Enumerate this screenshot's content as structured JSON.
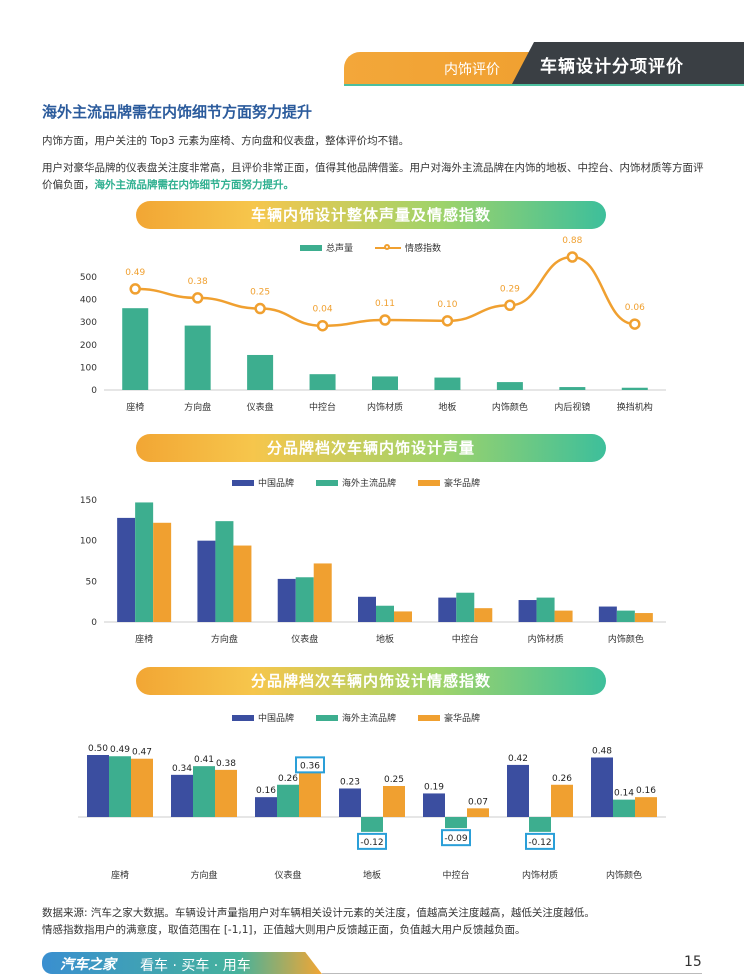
{
  "header": {
    "tab_left": "内饰评价",
    "tab_right": "车辆设计分项评价"
  },
  "title": "海外主流品牌需在内饰细节方面努力提升",
  "paragraphs": {
    "p1": "内饰方面，用户关注的 Top3 元素为座椅、方向盘和仪表盘，整体评价均不错。",
    "p2a": "用户对豪华品牌的仪表盘关注度非常高，且评价非常正面，值得其他品牌借鉴。用户对海外主流品牌在内饰的地板、中控台、内饰材质等方面评价偏负面，",
    "p2b": "海外主流品牌需在内饰细节方面努力提升。"
  },
  "source_note": {
    "line1": "数据来源: 汽车之家大数据。车辆设计声量指用户对车辆相关设计元素的关注度，值越高关注度越高，越低关注度越低。",
    "line2": "情感指数指用户的满意度，取值范围在 [-1,1]，正值越大则用户反馈越正面，负值越大用户反馈越负面。"
  },
  "footer": {
    "logo": "汽车之家",
    "slogan": "看车 · 买车 · 用车",
    "page": "15"
  },
  "colors": {
    "teal": "#3dae8f",
    "orange": "#f0a030",
    "blue": "#3b4ea0",
    "highlight_box": "#2a9fd8"
  },
  "chart_data": [
    {
      "type": "bar+line",
      "title": "车辆内饰设计整体声量及情感指数",
      "legend": [
        "总声量",
        "情感指数"
      ],
      "categories": [
        "座椅",
        "方向盘",
        "仪表盘",
        "中控台",
        "内饰材质",
        "地板",
        "内饰颜色",
        "内后视镜",
        "换挡机构"
      ],
      "series": [
        {
          "name": "总声量",
          "type": "bar",
          "values": [
            362,
            285,
            155,
            70,
            60,
            55,
            35,
            13,
            10
          ]
        },
        {
          "name": "情感指数",
          "type": "line",
          "values": [
            0.49,
            0.38,
            0.25,
            0.04,
            0.11,
            0.1,
            0.29,
            0.88,
            0.06
          ]
        }
      ],
      "y_ticks": [
        "500",
        "400",
        "300",
        "200",
        "100",
        "0"
      ],
      "ylim": [
        0,
        500
      ]
    },
    {
      "type": "bar",
      "title": "分品牌档次车辆内饰设计声量",
      "legend": [
        "中国品牌",
        "海外主流品牌",
        "豪华品牌"
      ],
      "categories": [
        "座椅",
        "方向盘",
        "仪表盘",
        "地板",
        "中控台",
        "内饰材质",
        "内饰颜色"
      ],
      "series": [
        {
          "name": "中国品牌",
          "values": [
            128,
            100,
            53,
            31,
            30,
            27,
            19
          ]
        },
        {
          "name": "海外主流品牌",
          "values": [
            147,
            124,
            55,
            20,
            36,
            30,
            14
          ]
        },
        {
          "name": "豪华品牌",
          "values": [
            122,
            94,
            72,
            13,
            17,
            14,
            11
          ]
        }
      ],
      "y_ticks": [
        "150",
        "100",
        "50",
        "0"
      ],
      "ylim": [
        0,
        150
      ]
    },
    {
      "type": "bar",
      "title": "分品牌档次车辆内饰设计情感指数",
      "legend": [
        "中国品牌",
        "海外主流品牌",
        "豪华品牌"
      ],
      "categories": [
        "座椅",
        "方向盘",
        "仪表盘",
        "地板",
        "中控台",
        "内饰材质",
        "内饰颜色"
      ],
      "series": [
        {
          "name": "中国品牌",
          "values": [
            0.5,
            0.34,
            0.16,
            0.23,
            0.19,
            0.42,
            0.48
          ],
          "labels": [
            "0.50",
            "0.34",
            "0.16",
            "0.23",
            "0.19",
            "0.42",
            "0.48"
          ]
        },
        {
          "name": "海外主流品牌",
          "values": [
            0.49,
            0.41,
            0.26,
            -0.12,
            -0.09,
            -0.12,
            0.14
          ],
          "labels": [
            "0.49",
            "0.41",
            "0.26",
            "-0.12",
            "-0.09",
            "-0.12",
            "0.14"
          ]
        },
        {
          "name": "豪华品牌",
          "values": [
            0.47,
            0.38,
            0.36,
            0.25,
            0.07,
            0.26,
            0.16
          ],
          "labels": [
            "0.47",
            "0.38",
            "0.36",
            "0.25",
            "0.07",
            "0.26",
            "0.16"
          ]
        }
      ],
      "highlighted": [
        "仪表盘 豪华品牌 0.36",
        "地板 海外主流品牌 -0.12",
        "中控台 海外主流品牌 -0.09",
        "内饰材质 海外主流品牌 -0.12"
      ]
    }
  ]
}
